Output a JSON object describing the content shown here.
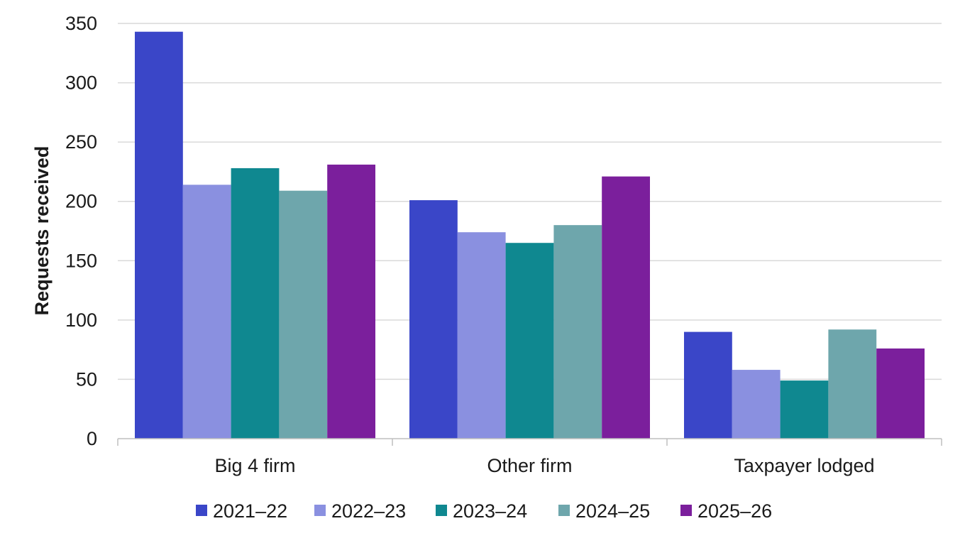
{
  "chart_data": {
    "type": "bar",
    "title": "",
    "xlabel": "",
    "ylabel": "Requests received",
    "ylim": [
      0,
      350
    ],
    "yticks": [
      0,
      50,
      100,
      150,
      200,
      250,
      300,
      350
    ],
    "grid": true,
    "legend_position": "bottom",
    "categories": [
      "Big 4 firm",
      "Other firm",
      "Taxpayer lodged"
    ],
    "series": [
      {
        "name": "2021–22",
        "color": "#3a46c8",
        "values": [
          343,
          201,
          90
        ]
      },
      {
        "name": "2022–23",
        "color": "#8a90e0",
        "values": [
          214,
          174,
          58
        ]
      },
      {
        "name": "2023–24",
        "color": "#0f8890",
        "values": [
          228,
          165,
          49
        ]
      },
      {
        "name": "2024–25",
        "color": "#6ea6ac",
        "values": [
          209,
          180,
          92
        ]
      },
      {
        "name": "2025–26",
        "color": "#7b1f9c",
        "values": [
          231,
          221,
          76
        ]
      }
    ]
  }
}
